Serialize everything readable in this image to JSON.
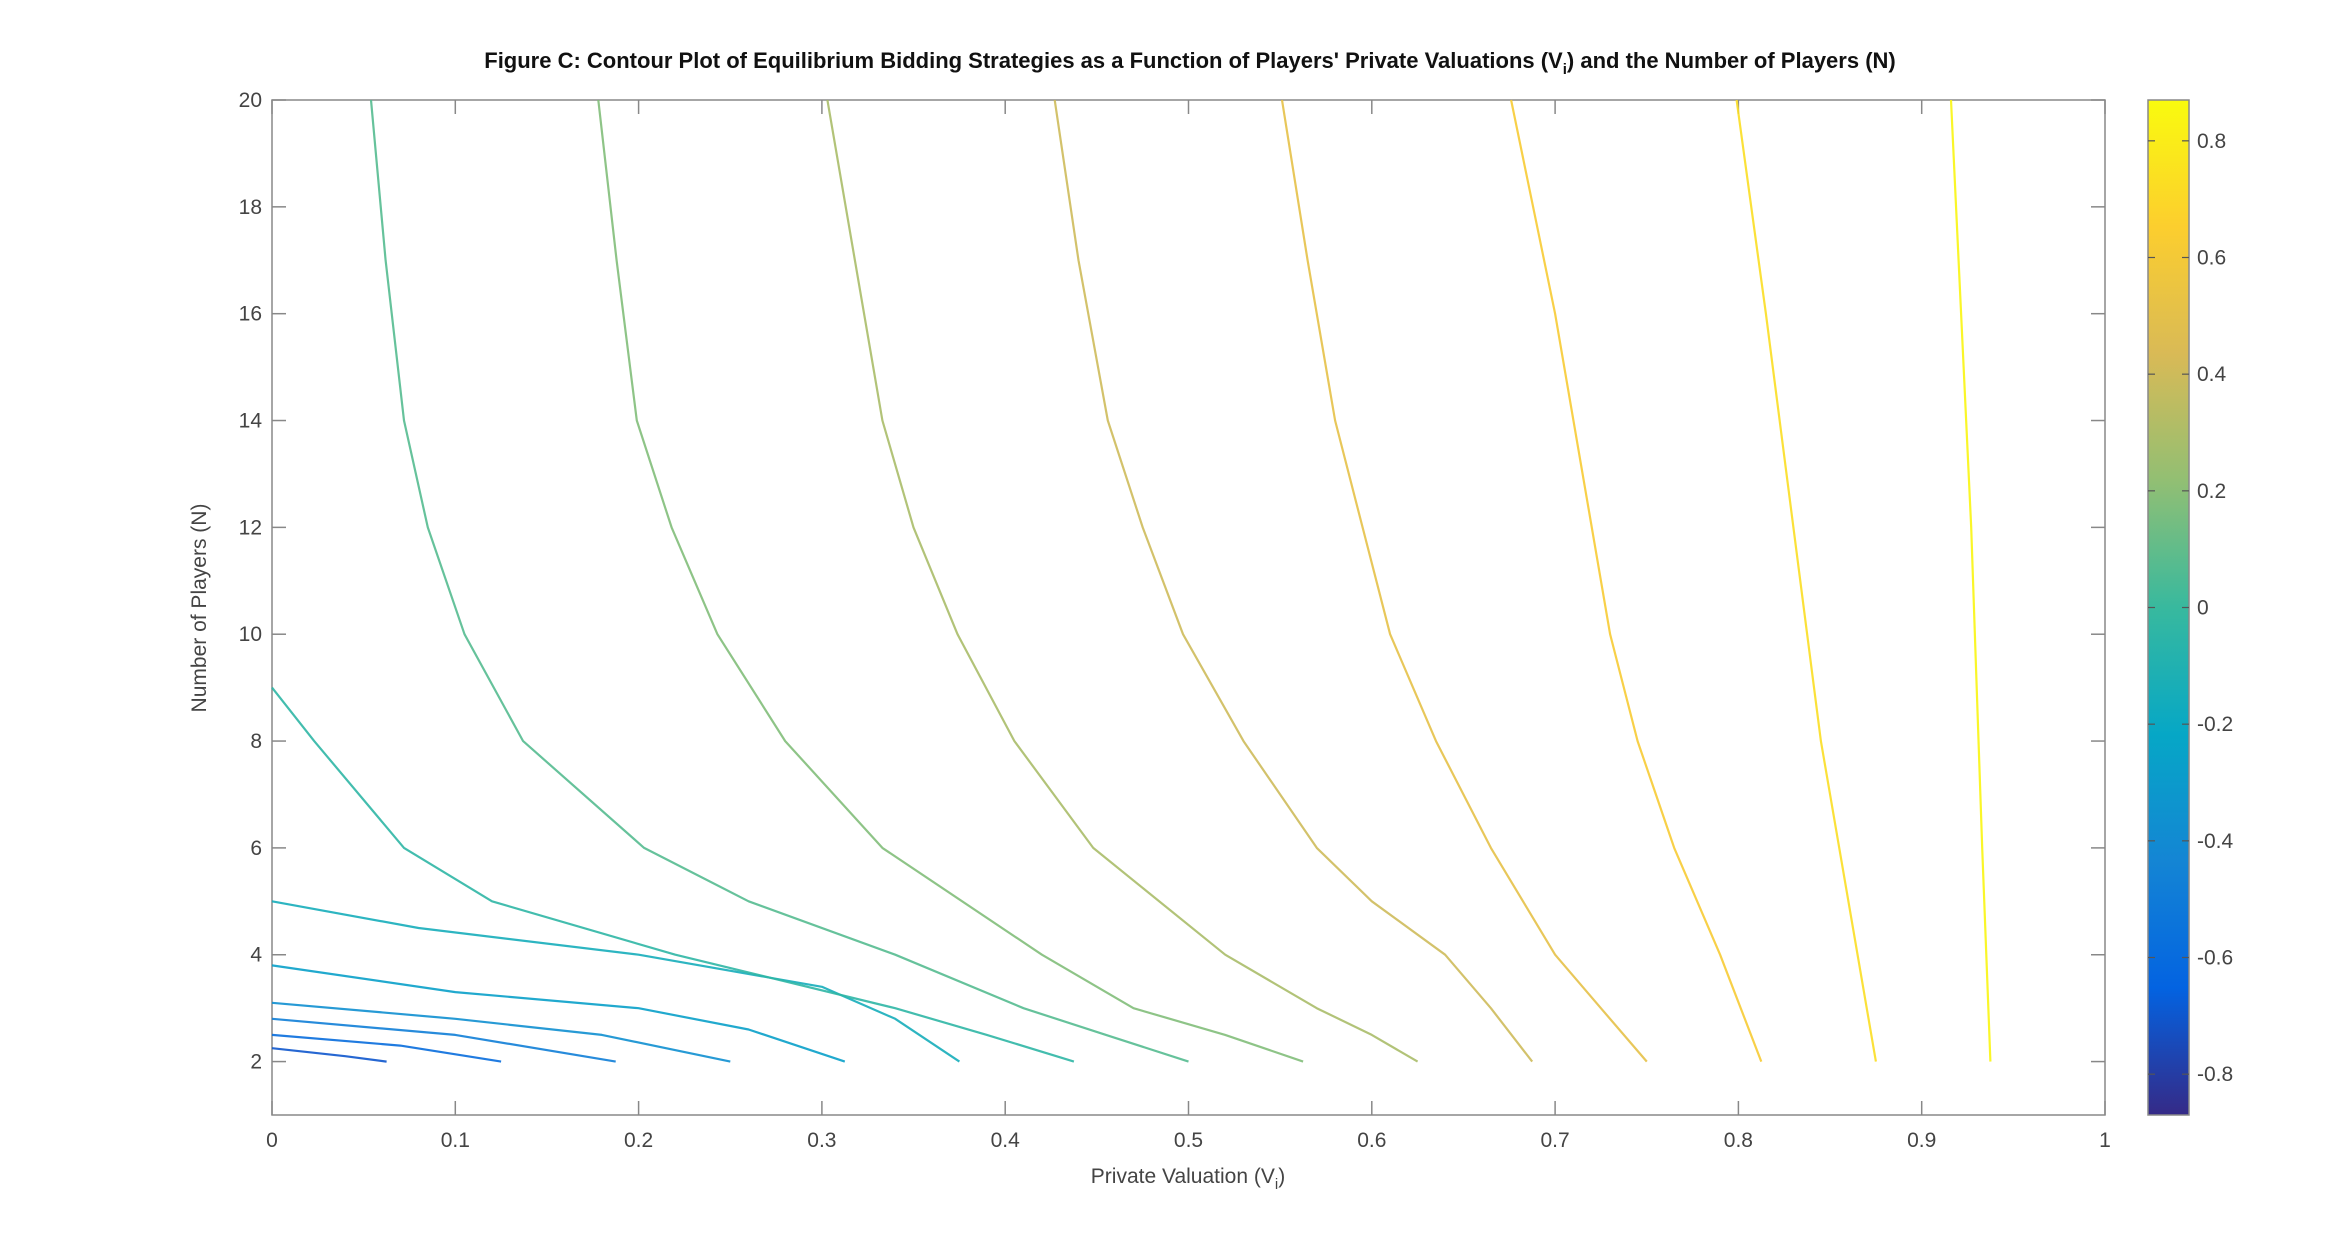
{
  "chart_data": {
    "type": "contour",
    "title": [
      "Figure C: Contour Plot of Equilibrium Bidding Strategies as a Function of Players' Private Valuations (V",
      "i",
      ") and the Number of Players (N)"
    ],
    "x_label": [
      "Private Valuation (V",
      "i",
      ")"
    ],
    "y_label": "Number of Players (N)",
    "xlim": [
      0,
      1
    ],
    "xticks": [
      0,
      0.1,
      0.2,
      0.3,
      0.4,
      0.5,
      0.6,
      0.7,
      0.8,
      0.9,
      1
    ],
    "ylim": [
      1,
      20
    ],
    "yticks": [
      2,
      4,
      6,
      8,
      10,
      12,
      14,
      16,
      18,
      20
    ],
    "colormap": "parula",
    "clim": [
      -0.87,
      0.87
    ],
    "cticks": [
      -0.8,
      -0.6,
      -0.4,
      -0.2,
      0,
      0.2,
      0.4,
      0.6,
      0.8
    ],
    "contours": [
      {
        "level": -0.7,
        "x": [
          0,
          0.04,
          0.0625
        ],
        "y": [
          2.25,
          2.1,
          2
        ]
      },
      {
        "level": -0.59,
        "x": [
          0,
          0.07,
          0.125
        ],
        "y": [
          2.5,
          2.3,
          2
        ]
      },
      {
        "level": -0.48,
        "x": [
          0,
          0.1,
          0.1875
        ],
        "y": [
          2.8,
          2.5,
          2
        ]
      },
      {
        "level": -0.37,
        "x": [
          0,
          0.1,
          0.18,
          0.25
        ],
        "y": [
          3.1,
          2.8,
          2.5,
          2
        ]
      },
      {
        "level": -0.26,
        "x": [
          0,
          0.1,
          0.2,
          0.26,
          0.3125
        ],
        "y": [
          3.8,
          3.3,
          3,
          2.6,
          2
        ]
      },
      {
        "level": -0.15,
        "x": [
          0,
          0.08,
          0.2,
          0.3,
          0.34,
          0.375
        ],
        "y": [
          5,
          4.5,
          4,
          3.4,
          2.8,
          2
        ]
      },
      {
        "level": -0.04,
        "x": [
          0,
          0.023,
          0.072,
          0.12,
          0.22,
          0.34,
          0.39,
          0.4375
        ],
        "y": [
          9,
          8,
          6,
          5,
          4,
          3,
          2.5,
          2
        ]
      },
      {
        "level": 0.07,
        "x": [
          0.5,
          0.455,
          0.41,
          0.34,
          0.26,
          0.203,
          0.137,
          0.105,
          0.085,
          0.072,
          0.062,
          0.054
        ],
        "y": [
          2,
          2.5,
          3,
          4,
          5,
          6,
          8,
          10,
          12,
          14,
          17,
          20
        ]
      },
      {
        "level": 0.18,
        "x": [
          0.5625,
          0.52,
          0.47,
          0.42,
          0.333,
          0.28,
          0.243,
          0.218,
          0.199,
          0.188,
          0.178
        ],
        "y": [
          2,
          2.5,
          3,
          4,
          6,
          8,
          10,
          12,
          14,
          17,
          20
        ]
      },
      {
        "level": 0.29,
        "x": [
          0.625,
          0.6,
          0.57,
          0.52,
          0.448,
          0.405,
          0.374,
          0.35,
          0.333,
          0.318,
          0.303
        ],
        "y": [
          2,
          2.5,
          3,
          4,
          6,
          8,
          10,
          12,
          14,
          17,
          20
        ]
      },
      {
        "level": 0.4,
        "x": [
          0.6875,
          0.665,
          0.64,
          0.6,
          0.57,
          0.53,
          0.497,
          0.475,
          0.456,
          0.44,
          0.427
        ],
        "y": [
          2,
          3,
          4,
          5,
          6,
          8,
          10,
          12,
          14,
          17,
          20
        ]
      },
      {
        "level": 0.51,
        "x": [
          0.75,
          0.725,
          0.7,
          0.665,
          0.635,
          0.61,
          0.595,
          0.58,
          0.565,
          0.551
        ],
        "y": [
          2,
          3,
          4,
          6,
          8,
          10,
          12,
          14,
          17,
          20
        ]
      },
      {
        "level": 0.62,
        "x": [
          0.8125,
          0.79,
          0.765,
          0.745,
          0.73,
          0.715,
          0.7,
          0.676
        ],
        "y": [
          2,
          4,
          6,
          8,
          10,
          13,
          16,
          20
        ]
      },
      {
        "level": 0.73,
        "x": [
          0.875,
          0.86,
          0.845,
          0.83,
          0.815,
          0.799
        ],
        "y": [
          2,
          5,
          8,
          12,
          16,
          20
        ]
      },
      {
        "level": 0.84,
        "x": [
          0.9375,
          0.933,
          0.927,
          0.916
        ],
        "y": [
          2,
          6,
          12,
          20
        ]
      }
    ]
  }
}
